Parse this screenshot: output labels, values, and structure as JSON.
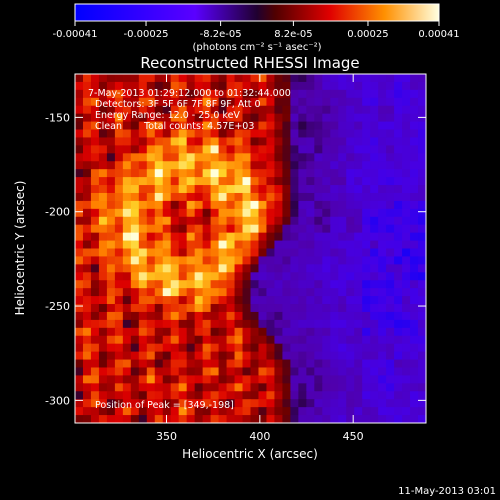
{
  "chart_data": {
    "type": "heatmap",
    "title": "Reconstructed RHESSI Image",
    "xlabel": "Heliocentric X (arcsec)",
    "ylabel": "Heliocentric Y (arcsec)",
    "xlim": [
      301,
      489
    ],
    "ylim": [
      -312,
      -127
    ],
    "xticks": [
      350,
      400,
      450
    ],
    "yticks": [
      -150,
      -200,
      -250,
      -300
    ],
    "colorbar": {
      "range": [
        -0.00041,
        0.00041
      ],
      "tick_values": [
        -0.00041,
        -0.00025,
        -8.2e-05,
        8.2e-05,
        0.00025,
        0.00041
      ],
      "tick_labels": [
        "-0.00041",
        "-0.00025",
        "-8.2e-05",
        "8.2e-05",
        "0.00025",
        "0.00041"
      ],
      "units_label": "(photons cm⁻² s⁻¹ asec⁻²)"
    },
    "annotations": {
      "time_range": "7-May-2013 01:29:12.000 to 01:32:44.000",
      "detectors": "Detectors: 3F 5F 6F 7F 8F 9F, Att 0",
      "energy_range": "Energy Range: 12.0 - 25.0 keV",
      "method": "Clean",
      "total_counts": "Total counts: 4.57E+03",
      "peak_position": "Position of Peak = [349,-198]"
    },
    "peak": [
      349,
      -198
    ],
    "footer_timestamp": "11-May-2013 03:01"
  }
}
